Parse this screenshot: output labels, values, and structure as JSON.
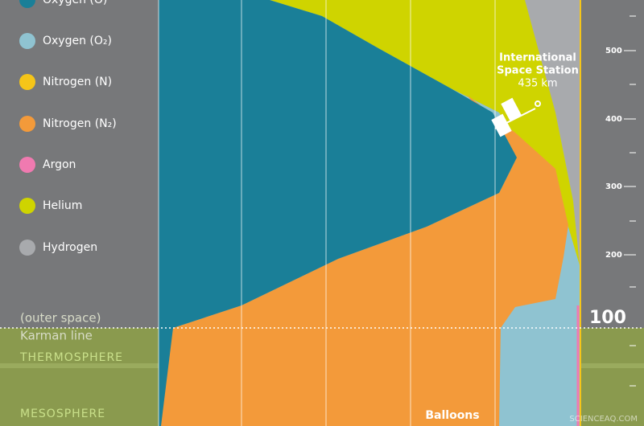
{
  "legend": [
    "Oxygen (O)",
    "Oxygen (O₂)",
    "Nitrogen (N)",
    "Nitrogen (N₂)",
    "Argon",
    "Helium",
    "Hydrogen"
  ],
  "iss": {
    "name": [
      "International",
      "Space Station"
    ],
    "altitude": "435 km"
  },
  "altitude_axis": {
    "ticks": [
      500,
      400,
      300,
      200,
      100
    ]
  },
  "labels": {
    "outer_space": "(outer space)",
    "karman_line": "Karman line",
    "thermosphere": "THERMOSPHERE",
    "mesosphere": "MESOSPHERE",
    "balloons": "Balloons"
  },
  "watermark": "SCIENCEAQ.COM"
}
